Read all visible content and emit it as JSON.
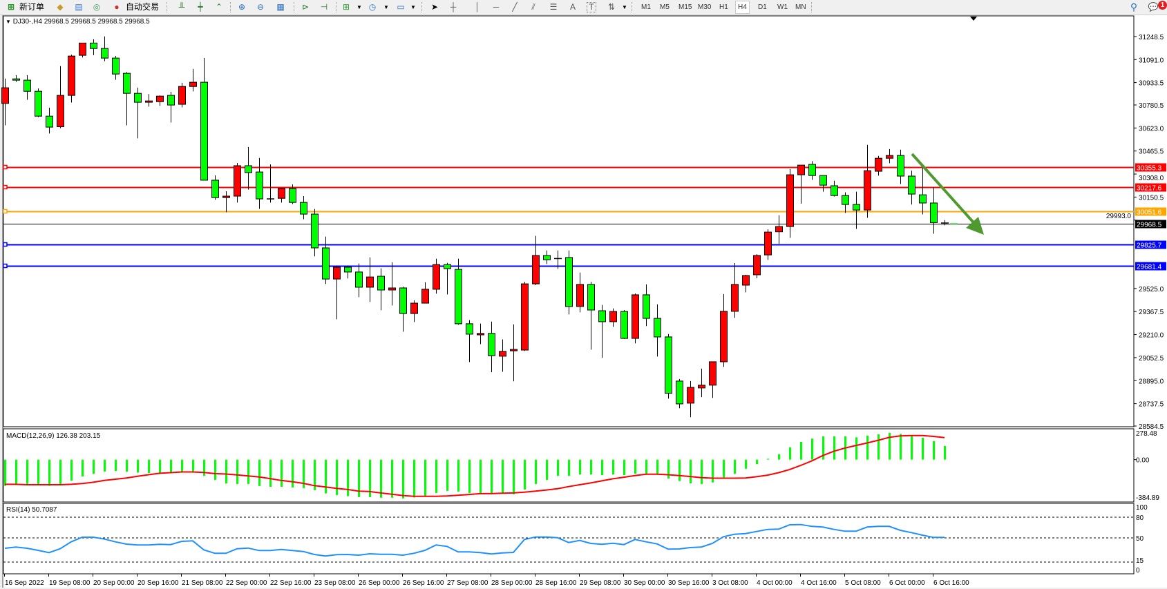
{
  "toolbar": {
    "new_order": "新订单",
    "auto_trading": "自动交易",
    "text_tool": "A",
    "text_label_tool": "T",
    "timeframes": [
      "M1",
      "M5",
      "M15",
      "M30",
      "H1",
      "H4",
      "D1",
      "W1",
      "MN"
    ],
    "active_timeframe": "H4",
    "notification_count": "1"
  },
  "chart": {
    "header_symbol": "DJ30-,H4",
    "header_values": "29968.5 29968.5 29968.5 29968.5",
    "price_ticks": [
      "31248.5",
      "31091.0",
      "30933.5",
      "30780.5",
      "30623.0",
      "30465.5",
      "30308.0",
      "30150.5",
      "29993.0",
      "29525.0",
      "29367.5",
      "29210.0",
      "29052.5",
      "28895.0",
      "28737.5",
      "28584.5"
    ],
    "levels": [
      {
        "price": "30355.3",
        "color": "#ff0000"
      },
      {
        "price": "30217.6",
        "color": "#ff0000"
      },
      {
        "price": "30051.6",
        "color": "#ffa500"
      },
      {
        "price": "29968.5",
        "color": "#000000"
      },
      {
        "price": "29825.7",
        "color": "#0000ff"
      },
      {
        "price": "29681.4",
        "color": "#0000ff"
      }
    ],
    "annotation_arrow_color": "#4e9a2f",
    "up_color": "#ff0000",
    "down_color": "#00ff00"
  },
  "macd": {
    "label": "MACD(12,26,9) 126.38 203.15",
    "axis_labels": [
      "278.48",
      "0.00",
      "-384.89"
    ],
    "histogram_color": "#00ff00",
    "signal_color": "#ff0000"
  },
  "rsi": {
    "label": "RSI(14) 50.7087",
    "axis_labels": [
      "100",
      "80",
      "50",
      "15",
      "0"
    ],
    "levels": [
      80,
      50,
      15
    ],
    "line_color": "#1e90ff"
  },
  "chart_data": [
    {
      "type": "candlestick",
      "title": "DJ30-,H4",
      "ylim": [
        28584.5,
        31385
      ],
      "x_tick_labels": [
        "16 Sep 2022",
        "19 Sep 08:00",
        "20 Sep 00:00",
        "20 Sep 16:00",
        "21 Sep 08:00",
        "22 Sep 00:00",
        "22 Sep 16:00",
        "23 Sep 08:00",
        "26 Sep 00:00",
        "26 Sep 16:00",
        "27 Sep 08:00",
        "28 Sep 00:00",
        "28 Sep 16:00",
        "29 Sep 08:00",
        "30 Sep 00:00",
        "30 Sep 16:00",
        "3 Oct 08:00",
        "4 Oct 00:00",
        "4 Oct 16:00",
        "5 Oct 08:00",
        "6 Oct 00:00",
        "6 Oct 16:00"
      ],
      "ohlc": [
        [
          30791,
          30961,
          30641,
          30898
        ],
        [
          30959,
          30984,
          30939,
          30950
        ],
        [
          30950,
          30984,
          30816,
          30874
        ],
        [
          30874,
          30893,
          30697,
          30704
        ],
        [
          30704,
          30762,
          30585,
          30629
        ],
        [
          30632,
          31046,
          30622,
          30846
        ],
        [
          30846,
          31124,
          30797,
          31115
        ],
        [
          31120,
          31204,
          31105,
          31204
        ],
        [
          31204,
          31230,
          31121,
          31167
        ],
        [
          31167,
          31249,
          31080,
          31101
        ],
        [
          31101,
          31116,
          30953,
          30992
        ],
        [
          30997,
          31006,
          30641,
          30860
        ],
        [
          30860,
          30899,
          30552,
          30799
        ],
        [
          30799,
          30855,
          30769,
          30808
        ],
        [
          30803,
          30846,
          30774,
          30841
        ],
        [
          30846,
          30871,
          30660,
          30780
        ],
        [
          30785,
          30932,
          30764,
          30907
        ],
        [
          30907,
          31027,
          30873,
          30936
        ],
        [
          30936,
          31102,
          30266,
          30266
        ],
        [
          30266,
          30299,
          30132,
          30147
        ],
        [
          30147,
          30190,
          30047,
          30157
        ],
        [
          30157,
          30383,
          30113,
          30365
        ],
        [
          30365,
          30493,
          30202,
          30318
        ],
        [
          30322,
          30418,
          30070,
          30138
        ],
        [
          30138,
          30374,
          30113,
          30138
        ],
        [
          30142,
          30213,
          30113,
          30209
        ],
        [
          30209,
          30237,
          30103,
          30114
        ],
        [
          30114,
          30157,
          29999,
          30034
        ],
        [
          30034,
          30069,
          29745,
          29803
        ],
        [
          29803,
          29880,
          29556,
          29590
        ],
        [
          29590,
          29682,
          29315,
          29671
        ],
        [
          29671,
          29682,
          29594,
          29638
        ],
        [
          29638,
          29696,
          29466,
          29534
        ],
        [
          29534,
          29738,
          29433,
          29604
        ],
        [
          29609,
          29663,
          29376,
          29515
        ],
        [
          29515,
          29705,
          29409,
          29529
        ],
        [
          29529,
          29538,
          29230,
          29354
        ],
        [
          29354,
          29444,
          29296,
          29425
        ],
        [
          29425,
          29568,
          29425,
          29520
        ],
        [
          29520,
          29729,
          29490,
          29689
        ],
        [
          29689,
          29700,
          29485,
          29661
        ],
        [
          29656,
          29729,
          29277,
          29284
        ],
        [
          29284,
          29309,
          29022,
          29213
        ],
        [
          29208,
          29285,
          29145,
          29218
        ],
        [
          29218,
          29299,
          28952,
          29066
        ],
        [
          29062,
          29177,
          28956,
          29095
        ],
        [
          29099,
          29280,
          28890,
          29109
        ],
        [
          29104,
          29571,
          29098,
          29557
        ],
        [
          29557,
          29885,
          29548,
          29751
        ],
        [
          29751,
          29785,
          29693,
          29722
        ],
        [
          29730,
          29785,
          29660,
          29730
        ],
        [
          29737,
          29785,
          29348,
          29402
        ],
        [
          29402,
          29634,
          29362,
          29553
        ],
        [
          29553,
          29571,
          29107,
          29378
        ],
        [
          29373,
          29413,
          29051,
          29298
        ],
        [
          29298,
          29389,
          29263,
          29368
        ],
        [
          29368,
          29378,
          29180,
          29184
        ],
        [
          29184,
          29491,
          29150,
          29482
        ],
        [
          29482,
          29554,
          29268,
          29321
        ],
        [
          29321,
          29417,
          29060,
          29194
        ],
        [
          29194,
          29214,
          28772,
          28809
        ],
        [
          28892,
          28906,
          28706,
          28736
        ],
        [
          28741,
          28892,
          28645,
          28849
        ],
        [
          28845,
          28977,
          28782,
          28864
        ],
        [
          28864,
          29024,
          28777,
          29024
        ],
        [
          29024,
          29487,
          28989,
          29369
        ],
        [
          29369,
          29699,
          29324,
          29553
        ],
        [
          29548,
          29619,
          29499,
          29614
        ],
        [
          29619,
          29760,
          29595,
          29751
        ],
        [
          29755,
          29930,
          29721,
          29911
        ],
        [
          29913,
          30026,
          29831,
          29949
        ],
        [
          29949,
          30342,
          29872,
          30303
        ],
        [
          30303,
          30369,
          30106,
          30369
        ],
        [
          30374,
          30396,
          30268,
          30298
        ],
        [
          30298,
          30298,
          30187,
          30232
        ],
        [
          30228,
          30262,
          30154,
          30161
        ],
        [
          30161,
          30183,
          30042,
          30100
        ],
        [
          30100,
          30187,
          29933,
          30062
        ],
        [
          30062,
          30508,
          30009,
          30331
        ],
        [
          30327,
          30432,
          30297,
          30416
        ],
        [
          30416,
          30479,
          30382,
          30435
        ],
        [
          30435,
          30475,
          30240,
          30294
        ],
        [
          30294,
          30331,
          30099,
          30171
        ],
        [
          30166,
          30374,
          30032,
          30110
        ],
        [
          30110,
          30218,
          29900,
          29976
        ],
        [
          29973,
          29993,
          29957,
          29968.5
        ]
      ]
    },
    {
      "type": "bar",
      "title": "MACD(12,26,9)",
      "ylim": [
        -384.89,
        278.48
      ],
      "series": [
        {
          "name": "MACD",
          "type": "bar",
          "values": [
            -242,
            -225,
            -225,
            -225,
            -242,
            -225,
            -194,
            -156,
            -131,
            -110,
            -105,
            -112,
            -120,
            -124,
            -120,
            -116,
            -112,
            -107,
            -150,
            -187,
            -221,
            -225,
            -225,
            -244,
            -251,
            -251,
            -257,
            -263,
            -282,
            -312,
            -327,
            -337,
            -346,
            -346,
            -352,
            -352,
            -358,
            -350,
            -337,
            -308,
            -289,
            -295,
            -310,
            -312,
            -312,
            -316,
            -320,
            -276,
            -225,
            -187,
            -150,
            -150,
            -137,
            -137,
            -143,
            -137,
            -143,
            -131,
            -131,
            -131,
            -175,
            -198,
            -219,
            -225,
            -211,
            -164,
            -131,
            -84,
            -42,
            8,
            51,
            114,
            164,
            194,
            215,
            215,
            215,
            206,
            221,
            234,
            247,
            238,
            219,
            202,
            171,
            126.38
          ]
        },
        {
          "name": "Signal",
          "type": "line",
          "values": [
            -228,
            -228,
            -232,
            -232,
            -232,
            -232,
            -228,
            -221,
            -209,
            -192,
            -181,
            -169,
            -154,
            -139,
            -126,
            -120,
            -114,
            -114,
            -118,
            -129,
            -133,
            -141,
            -150,
            -160,
            -175,
            -192,
            -204,
            -219,
            -240,
            -253,
            -265,
            -276,
            -291,
            -295,
            -308,
            -320,
            -331,
            -339,
            -339,
            -339,
            -335,
            -329,
            -322,
            -314,
            -314,
            -310,
            -308,
            -301,
            -291,
            -280,
            -268,
            -249,
            -232,
            -215,
            -196,
            -177,
            -162,
            -147,
            -135,
            -135,
            -139,
            -147,
            -156,
            -166,
            -171,
            -171,
            -171,
            -169,
            -158,
            -143,
            -120,
            -91,
            -53,
            -11,
            38,
            78,
            107,
            131,
            154,
            179,
            206,
            219,
            223,
            223,
            215,
            203.15
          ]
        }
      ]
    },
    {
      "type": "line",
      "title": "RSI(14)",
      "ylim": [
        0,
        100
      ],
      "values": [
        35,
        36.7,
        35,
        32,
        28.7,
        34.3,
        44.3,
        51,
        51,
        48.3,
        44.3,
        41,
        39.7,
        39.7,
        40.7,
        40.3,
        45,
        45.7,
        32.7,
        27.7,
        27.7,
        34.3,
        35.3,
        31.7,
        31.7,
        33.3,
        31.7,
        30.3,
        26,
        23.7,
        25.7,
        26,
        25,
        27,
        26.3,
        26.3,
        25,
        27.7,
        32,
        39.7,
        37.7,
        29.7,
        29.7,
        28.7,
        26.7,
        28.3,
        29,
        47.7,
        51.3,
        51.3,
        50.3,
        43.3,
        46.3,
        42,
        40.7,
        42.3,
        40.3,
        47.7,
        44.3,
        41.3,
        33.7,
        34,
        36,
        36.7,
        42,
        51.7,
        55.3,
        56.3,
        59.3,
        62.3,
        62.7,
        69,
        69.3,
        66.7,
        65.7,
        62.3,
        59.7,
        59.7,
        65.7,
        66.7,
        66.7,
        61,
        57.7,
        54,
        50.7,
        50.7087
      ]
    }
  ]
}
